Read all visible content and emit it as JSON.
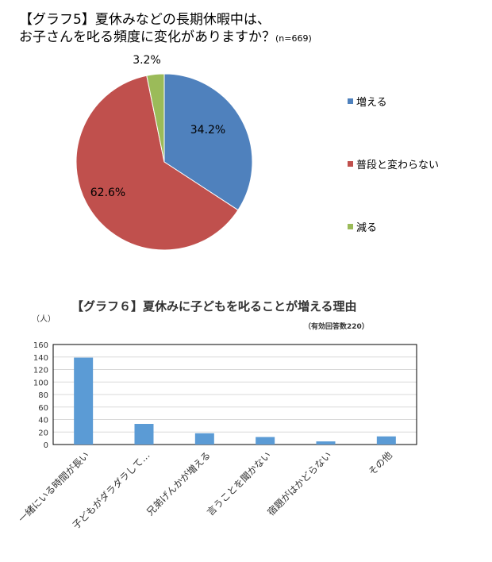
{
  "chart_data": [
    {
      "type": "pie",
      "title_line1": "【グラフ5】夏休みなどの長期休暇中は、",
      "title_line2": "お子さんを叱る頻度に変化がありますか？",
      "n_label": "(n=669)",
      "slices": [
        {
          "label": "増える",
          "value": 34.2,
          "text": "34.2%",
          "color": "#4F81BD"
        },
        {
          "label": "普段と変わらない",
          "value": 62.6,
          "text": "62.6%",
          "color": "#C0504D"
        },
        {
          "label": "減る",
          "value": 3.2,
          "text": "3.2%",
          "color": "#9BBB59"
        }
      ],
      "legend": "right"
    },
    {
      "type": "bar",
      "title": "【グラフ６】夏休みに子どもを叱ることが増える理由",
      "ylabel": "（人）",
      "note": "（有効回答数220）",
      "categories": [
        "一緒にいる時間が長い",
        "子どもがダラダラして…",
        "兄弟げんかが増える",
        "言うことを聞かない",
        "宿題がはかどらない",
        "その他"
      ],
      "values": [
        139,
        33,
        18,
        12,
        5,
        13
      ],
      "ylim": [
        0,
        160
      ],
      "yticks": [
        "0",
        "20",
        "40",
        "60",
        "80",
        "100",
        "120",
        "140",
        "160"
      ],
      "color": "#5B9BD5",
      "grid": true
    }
  ]
}
